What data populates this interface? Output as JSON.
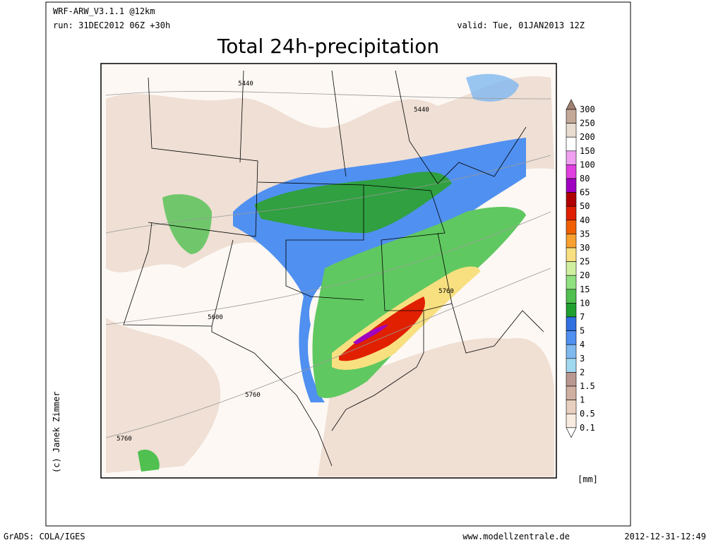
{
  "header": {
    "model": "WRF-ARW_V3.1.1 @12km",
    "run": "run: 31DEC2012 06Z +30h",
    "valid": "valid: Tue, 01JAN2013 12Z",
    "title": "Total 24h-precipitation"
  },
  "map": {
    "contour_labels": [
      "5440",
      "5440",
      "5600",
      "5760",
      "5760",
      "5760"
    ]
  },
  "colorbar": {
    "labels": [
      "300",
      "250",
      "200",
      "150",
      "100",
      "80",
      "65",
      "50",
      "40",
      "35",
      "30",
      "25",
      "20",
      "15",
      "10",
      "7",
      "5",
      "4",
      "3",
      "2",
      "1.5",
      "1",
      "0.5",
      "0.1"
    ],
    "colors": [
      "#a08070",
      "#c4a898",
      "#e8dcd0",
      "#ffffff",
      "#f0a0f0",
      "#e040e0",
      "#a000c0",
      "#b00000",
      "#e02000",
      "#f06000",
      "#f8a030",
      "#f8e080",
      "#d0f0a0",
      "#90e080",
      "#50c050",
      "#20a030",
      "#3070e0",
      "#5090f0",
      "#80b8f0",
      "#a0d8f0",
      "#b89890",
      "#d0b0a0",
      "#e8d0c0",
      "#f8ece0",
      "#ffffff"
    ],
    "unit": "[mm]"
  },
  "credit": "(c) Janek Zimmer",
  "footer": {
    "left": "GrADS: COLA/IGES",
    "center": "www.modellzentrale.de",
    "right": "2012-12-31-12:49"
  }
}
